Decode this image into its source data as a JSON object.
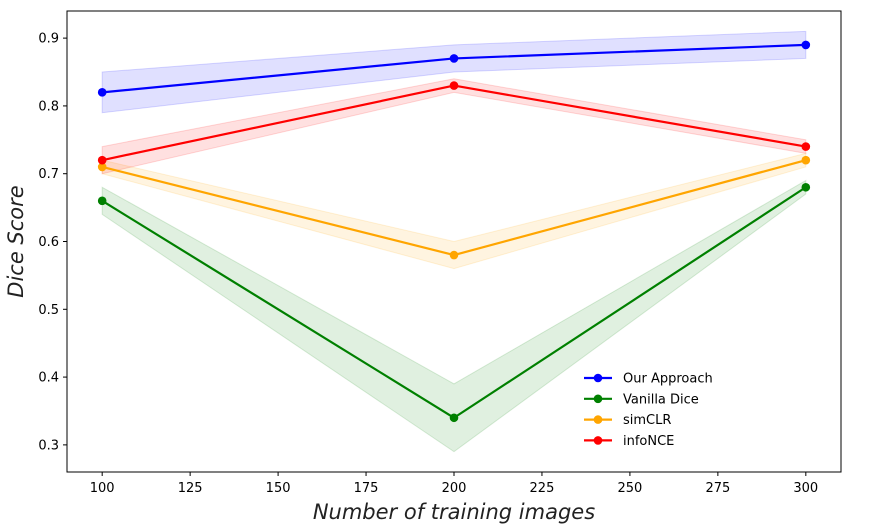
{
  "chart_data": {
    "type": "line",
    "xlabel": "Number of training images",
    "ylabel": "Dice Score",
    "xlim": [
      90,
      310
    ],
    "ylim": [
      0.26,
      0.94
    ],
    "xticks": [
      100,
      125,
      150,
      175,
      200,
      225,
      250,
      275,
      300
    ],
    "yticks": [
      0.3,
      0.4,
      0.5,
      0.6,
      0.7,
      0.8,
      0.9
    ],
    "x": [
      100,
      200,
      300
    ],
    "legend_position": "lower-right",
    "grid": false,
    "series": [
      {
        "name": "Our Approach",
        "color": "#0000ff",
        "values": [
          0.82,
          0.87,
          0.89
        ],
        "lower": [
          0.79,
          0.85,
          0.87
        ],
        "upper": [
          0.85,
          0.89,
          0.91
        ]
      },
      {
        "name": "Vanilla Dice",
        "color": "#008000",
        "values": [
          0.66,
          0.34,
          0.68
        ],
        "lower": [
          0.64,
          0.29,
          0.67
        ],
        "upper": [
          0.68,
          0.39,
          0.69
        ]
      },
      {
        "name": "simCLR",
        "color": "#ffa500",
        "values": [
          0.71,
          0.58,
          0.72
        ],
        "lower": [
          0.7,
          0.56,
          0.71
        ],
        "upper": [
          0.72,
          0.6,
          0.73
        ]
      },
      {
        "name": "infoNCE",
        "color": "#ff0000",
        "values": [
          0.72,
          0.83,
          0.74
        ],
        "lower": [
          0.7,
          0.82,
          0.73
        ],
        "upper": [
          0.74,
          0.84,
          0.75
        ]
      }
    ]
  }
}
